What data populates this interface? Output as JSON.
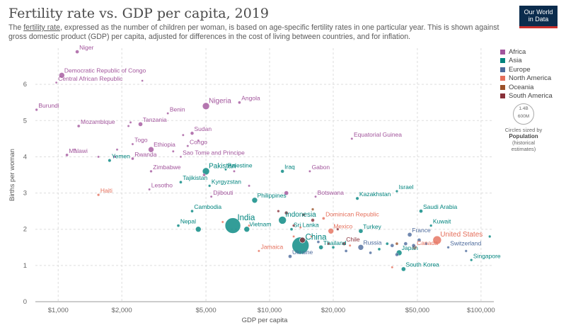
{
  "header": {
    "title": "Fertility rate vs. GDP per capita, 2019",
    "subtitle_link": "fertility rate",
    "subtitle_pre": "The ",
    "subtitle_post": ", expressed as the number of children per woman, is based on age-specific fertility rates in one particular year. This is shown against gross domestic product (GDP) per capita, adjusted for differences in the cost of living between countries, and for inflation.",
    "logo_line1": "Our World",
    "logo_line2": "in Data"
  },
  "legend": {
    "items": [
      {
        "label": "Africa",
        "color": "#a2559c"
      },
      {
        "label": "Asia",
        "color": "#00847e"
      },
      {
        "label": "Europe",
        "color": "#4c6a9c"
      },
      {
        "label": "North America",
        "color": "#e56e5a"
      },
      {
        "label": "Oceania",
        "color": "#9a5129"
      },
      {
        "label": "South America",
        "color": "#883039"
      }
    ],
    "size_ring_top": "1.4B",
    "size_ring_bottom": "600M",
    "size_caption": "Circles sized by",
    "size_label_line1": "Population",
    "size_label_line2": "(historical",
    "size_label_line3": "estimates)"
  },
  "chart_data": {
    "type": "scatter",
    "title": "Fertility rate vs. GDP per capita, 2019",
    "xlabel": "GDP per capita",
    "ylabel": "Births per woman",
    "xscale": "log",
    "xlim": [
      780,
      115000
    ],
    "ylim": [
      0,
      7
    ],
    "xticks": [
      1000,
      2000,
      5000,
      10000,
      20000,
      50000,
      100000
    ],
    "xtick_labels": [
      "$1,000",
      "$2,000",
      "$5,000",
      "$10,000",
      "$20,000",
      "$50,000",
      "$100,000"
    ],
    "yticks": [
      0,
      1,
      2,
      3,
      4,
      5,
      6
    ],
    "ytick_labels": [
      "0",
      "1",
      "2",
      "3",
      "4",
      "5",
      "6"
    ],
    "grid": true,
    "legend_position": "right",
    "points": [
      {
        "label": "Niger",
        "x": 1230,
        "y": 6.9,
        "r": 2.5,
        "region": "Africa"
      },
      {
        "label": "Democratic Republic of Congo",
        "x": 1040,
        "y": 6.25,
        "r": 4,
        "region": "Africa"
      },
      {
        "label": "Central African Republic",
        "x": 980,
        "y": 6.05,
        "r": 1.5,
        "region": "Africa"
      },
      {
        "label": "",
        "x": 2500,
        "y": 6.1,
        "r": 1.5,
        "region": "Africa"
      },
      {
        "label": "Burundi",
        "x": 790,
        "y": 5.3,
        "r": 1.8,
        "region": "Africa"
      },
      {
        "label": "Nigeria",
        "x": 5000,
        "y": 5.4,
        "r": 5,
        "region": "Africa"
      },
      {
        "label": "Angola",
        "x": 7200,
        "y": 5.5,
        "r": 2,
        "region": "Africa"
      },
      {
        "label": "Benin",
        "x": 3300,
        "y": 5.2,
        "r": 1.6,
        "region": "Africa"
      },
      {
        "label": "Mozambique",
        "x": 1250,
        "y": 4.85,
        "r": 2,
        "region": "Africa"
      },
      {
        "label": "Tanzania",
        "x": 2450,
        "y": 4.9,
        "r": 3,
        "region": "Africa"
      },
      {
        "label": "",
        "x": 2150,
        "y": 4.85,
        "r": 1.6,
        "region": "Africa"
      },
      {
        "label": "",
        "x": 2200,
        "y": 4.95,
        "r": 1.6,
        "region": "Africa"
      },
      {
        "label": "Sudan",
        "x": 4300,
        "y": 4.65,
        "r": 2.4,
        "region": "Africa"
      },
      {
        "label": "",
        "x": 3900,
        "y": 4.6,
        "r": 1.6,
        "region": "Africa"
      },
      {
        "label": "Togo",
        "x": 2250,
        "y": 4.35,
        "r": 1.6,
        "region": "Africa"
      },
      {
        "label": "Ethiopia",
        "x": 2750,
        "y": 4.2,
        "r": 4,
        "region": "Africa"
      },
      {
        "label": "Congo",
        "x": 4100,
        "y": 4.3,
        "r": 1.6,
        "region": "Africa"
      },
      {
        "label": "",
        "x": 4600,
        "y": 4.45,
        "r": 1.6,
        "region": "Africa"
      },
      {
        "label": "Equatorial Guinea",
        "x": 24500,
        "y": 4.5,
        "r": 1.6,
        "region": "Africa"
      },
      {
        "label": "Malawi",
        "x": 1100,
        "y": 4.05,
        "r": 2,
        "region": "Africa"
      },
      {
        "label": "",
        "x": 1200,
        "y": 4.2,
        "r": 1.6,
        "region": "Africa"
      },
      {
        "label": "Rwanda",
        "x": 2250,
        "y": 3.95,
        "r": 2,
        "region": "Africa"
      },
      {
        "label": "",
        "x": 1900,
        "y": 4.2,
        "r": 1.6,
        "region": "Africa"
      },
      {
        "label": "",
        "x": 1850,
        "y": 4.0,
        "r": 1.6,
        "region": "Africa"
      },
      {
        "label": "",
        "x": 3500,
        "y": 4.15,
        "r": 1.6,
        "region": "Africa"
      },
      {
        "label": "Sao Tome and Principe",
        "x": 3800,
        "y": 4.0,
        "r": 1.5,
        "region": "Africa"
      },
      {
        "label": "",
        "x": 1550,
        "y": 4.0,
        "r": 1.6,
        "region": "Africa"
      },
      {
        "label": "Zimbabwe",
        "x": 2750,
        "y": 3.6,
        "r": 1.8,
        "region": "Africa"
      },
      {
        "label": "Gabon",
        "x": 15500,
        "y": 3.6,
        "r": 1.6,
        "region": "Africa"
      },
      {
        "label": "Lesotho",
        "x": 2700,
        "y": 3.1,
        "r": 1.6,
        "region": "Africa"
      },
      {
        "label": "Djibouti",
        "x": 5300,
        "y": 2.9,
        "r": 1.6,
        "region": "Africa"
      },
      {
        "label": "Botswana",
        "x": 16500,
        "y": 2.9,
        "r": 1.6,
        "region": "Africa"
      },
      {
        "label": "",
        "x": 8000,
        "y": 3.2,
        "r": 1.6,
        "region": "Africa"
      },
      {
        "label": "",
        "x": 12000,
        "y": 3.0,
        "r": 3,
        "region": "Africa"
      },
      {
        "label": "",
        "x": 4900,
        "y": 3.5,
        "r": 2,
        "region": "Africa"
      },
      {
        "label": "",
        "x": 6800,
        "y": 3.6,
        "r": 1.6,
        "region": "Africa"
      },
      {
        "label": "Pakistan",
        "x": 5000,
        "y": 3.6,
        "r": 5,
        "region": "Asia"
      },
      {
        "label": "Palestine",
        "x": 6200,
        "y": 3.65,
        "r": 1.6,
        "region": "Asia"
      },
      {
        "label": "Iraq",
        "x": 11500,
        "y": 3.6,
        "r": 2.4,
        "region": "Asia"
      },
      {
        "label": "Yemen",
        "x": 1750,
        "y": 3.9,
        "r": 2.2,
        "region": "Asia"
      },
      {
        "label": "Tajikistan",
        "x": 3800,
        "y": 3.3,
        "r": 2,
        "region": "Asia"
      },
      {
        "label": "Israel",
        "x": 40000,
        "y": 3.05,
        "r": 1.8,
        "region": "Asia"
      },
      {
        "label": "Kyrgyzstan",
        "x": 5200,
        "y": 3.2,
        "r": 1.8,
        "region": "Asia"
      },
      {
        "label": "Kazakhstan",
        "x": 26000,
        "y": 2.85,
        "r": 2.2,
        "region": "Asia"
      },
      {
        "label": "Philippines",
        "x": 8500,
        "y": 2.8,
        "r": 4,
        "region": "Asia"
      },
      {
        "label": "Cambodia",
        "x": 4300,
        "y": 2.5,
        "r": 2,
        "region": "Asia"
      },
      {
        "label": "India",
        "x": 6700,
        "y": 2.1,
        "r": 11,
        "region": "Asia"
      },
      {
        "label": "Nepal",
        "x": 3700,
        "y": 2.1,
        "r": 2,
        "region": "Asia"
      },
      {
        "label": "",
        "x": 4600,
        "y": 2.0,
        "r": 4,
        "region": "Asia"
      },
      {
        "label": "Vietnam",
        "x": 7800,
        "y": 2.0,
        "r": 4,
        "region": "Asia"
      },
      {
        "label": "Indonesia",
        "x": 11500,
        "y": 2.25,
        "r": 5.5,
        "region": "Asia"
      },
      {
        "label": "Sri Lanka",
        "x": 12700,
        "y": 2.0,
        "r": 2,
        "region": "Asia"
      },
      {
        "label": "Saudi Arabia",
        "x": 52000,
        "y": 2.5,
        "r": 2.5,
        "region": "Asia"
      },
      {
        "label": "Kuwait",
        "x": 58000,
        "y": 2.1,
        "r": 1.8,
        "region": "Asia"
      },
      {
        "label": "Turkey",
        "x": 27000,
        "y": 1.95,
        "r": 3,
        "region": "Asia"
      },
      {
        "label": "China",
        "x": 14000,
        "y": 1.55,
        "r": 12,
        "region": "Asia"
      },
      {
        "label": "Thailand",
        "x": 17500,
        "y": 1.5,
        "r": 3,
        "region": "Asia"
      },
      {
        "label": "Japan",
        "x": 41000,
        "y": 1.35,
        "r": 4,
        "region": "Asia"
      },
      {
        "label": "Switzerland",
        "x": 70000,
        "y": 1.5,
        "r": 1.8,
        "region": "Europe"
      },
      {
        "label": "South Korea",
        "x": 43000,
        "y": 0.9,
        "r": 3,
        "region": "Asia"
      },
      {
        "label": "Singapore",
        "x": 90000,
        "y": 1.15,
        "r": 1.8,
        "region": "Asia"
      },
      {
        "label": "",
        "x": 110000,
        "y": 1.8,
        "r": 1.8,
        "region": "Asia"
      },
      {
        "label": "",
        "x": 20000,
        "y": 1.5,
        "r": 2,
        "region": "Asia"
      },
      {
        "label": "",
        "x": 36000,
        "y": 1.6,
        "r": 2,
        "region": "Asia"
      },
      {
        "label": "",
        "x": 33000,
        "y": 1.45,
        "r": 2,
        "region": "Asia"
      },
      {
        "label": "France",
        "x": 46000,
        "y": 1.85,
        "r": 3,
        "region": "Europe"
      },
      {
        "label": "Russia",
        "x": 27000,
        "y": 1.5,
        "r": 4,
        "region": "Europe"
      },
      {
        "label": "Ukraine",
        "x": 12500,
        "y": 1.25,
        "r": 2.5,
        "region": "Europe"
      },
      {
        "label": "",
        "x": 38000,
        "y": 1.55,
        "r": 2.5,
        "region": "Europe"
      },
      {
        "label": "",
        "x": 44000,
        "y": 1.6,
        "r": 2.5,
        "region": "Europe"
      },
      {
        "label": "",
        "x": 48000,
        "y": 1.55,
        "r": 2.5,
        "region": "Europe"
      },
      {
        "label": "",
        "x": 51000,
        "y": 1.7,
        "r": 2.5,
        "region": "Europe"
      },
      {
        "label": "",
        "x": 55000,
        "y": 1.6,
        "r": 2,
        "region": "Europe"
      },
      {
        "label": "",
        "x": 30000,
        "y": 1.35,
        "r": 2,
        "region": "Europe"
      },
      {
        "label": "",
        "x": 23000,
        "y": 1.4,
        "r": 2,
        "region": "Europe"
      },
      {
        "label": "",
        "x": 40000,
        "y": 1.3,
        "r": 2.4,
        "region": "Europe"
      },
      {
        "label": "",
        "x": 85000,
        "y": 1.4,
        "r": 1.8,
        "region": "Europe"
      },
      {
        "label": "",
        "x": 17000,
        "y": 1.65,
        "r": 2,
        "region": "Europe"
      },
      {
        "label": "United States",
        "x": 62000,
        "y": 1.7,
        "r": 6,
        "region": "North America"
      },
      {
        "label": "Mexico",
        "x": 19500,
        "y": 1.95,
        "r": 4,
        "region": "North America"
      },
      {
        "label": "Canada",
        "x": 48500,
        "y": 1.5,
        "r": 3,
        "region": "North America"
      },
      {
        "label": "Dominican Republic",
        "x": 18000,
        "y": 2.3,
        "r": 2,
        "region": "North America"
      },
      {
        "label": "Haiti",
        "x": 1550,
        "y": 2.95,
        "r": 1.8,
        "region": "North America"
      },
      {
        "label": "Jamaica",
        "x": 8900,
        "y": 1.4,
        "r": 1.6,
        "region": "North America"
      },
      {
        "label": "",
        "x": 14000,
        "y": 2.05,
        "r": 1.6,
        "region": "North America"
      },
      {
        "label": "",
        "x": 15800,
        "y": 1.8,
        "r": 1.6,
        "region": "North America"
      },
      {
        "label": "",
        "x": 13000,
        "y": 1.8,
        "r": 1.6,
        "region": "North America"
      },
      {
        "label": "",
        "x": 8000,
        "y": 2.1,
        "r": 1.6,
        "region": "North America"
      },
      {
        "label": "",
        "x": 6000,
        "y": 2.2,
        "r": 1.6,
        "region": "North America"
      },
      {
        "label": "",
        "x": 38000,
        "y": 0.95,
        "r": 1.6,
        "region": "North America"
      },
      {
        "label": "",
        "x": 24000,
        "y": 1.55,
        "r": 1.6,
        "region": "North America"
      },
      {
        "label": "",
        "x": 40000,
        "y": 1.6,
        "r": 2,
        "region": "Oceania"
      },
      {
        "label": "",
        "x": 16000,
        "y": 2.55,
        "r": 1.8,
        "region": "Oceania"
      },
      {
        "label": "Chile",
        "x": 22500,
        "y": 1.6,
        "r": 2.4,
        "region": "South America"
      },
      {
        "label": "",
        "x": 14300,
        "y": 1.7,
        "r": 4,
        "region": "South America"
      },
      {
        "label": "",
        "x": 14500,
        "y": 2.4,
        "r": 2,
        "region": "South America"
      },
      {
        "label": "",
        "x": 12000,
        "y": 2.45,
        "r": 2.4,
        "region": "South America"
      },
      {
        "label": "",
        "x": 16000,
        "y": 2.25,
        "r": 2.4,
        "region": "South America"
      },
      {
        "label": "",
        "x": 13000,
        "y": 2.1,
        "r": 1.8,
        "region": "South America"
      },
      {
        "label": "",
        "x": 21000,
        "y": 2.0,
        "r": 1.8,
        "region": "South America"
      },
      {
        "label": "",
        "x": 19000,
        "y": 1.6,
        "r": 1.8,
        "region": "South America"
      },
      {
        "label": "",
        "x": 11000,
        "y": 2.5,
        "r": 1.8,
        "region": "South America"
      }
    ]
  }
}
